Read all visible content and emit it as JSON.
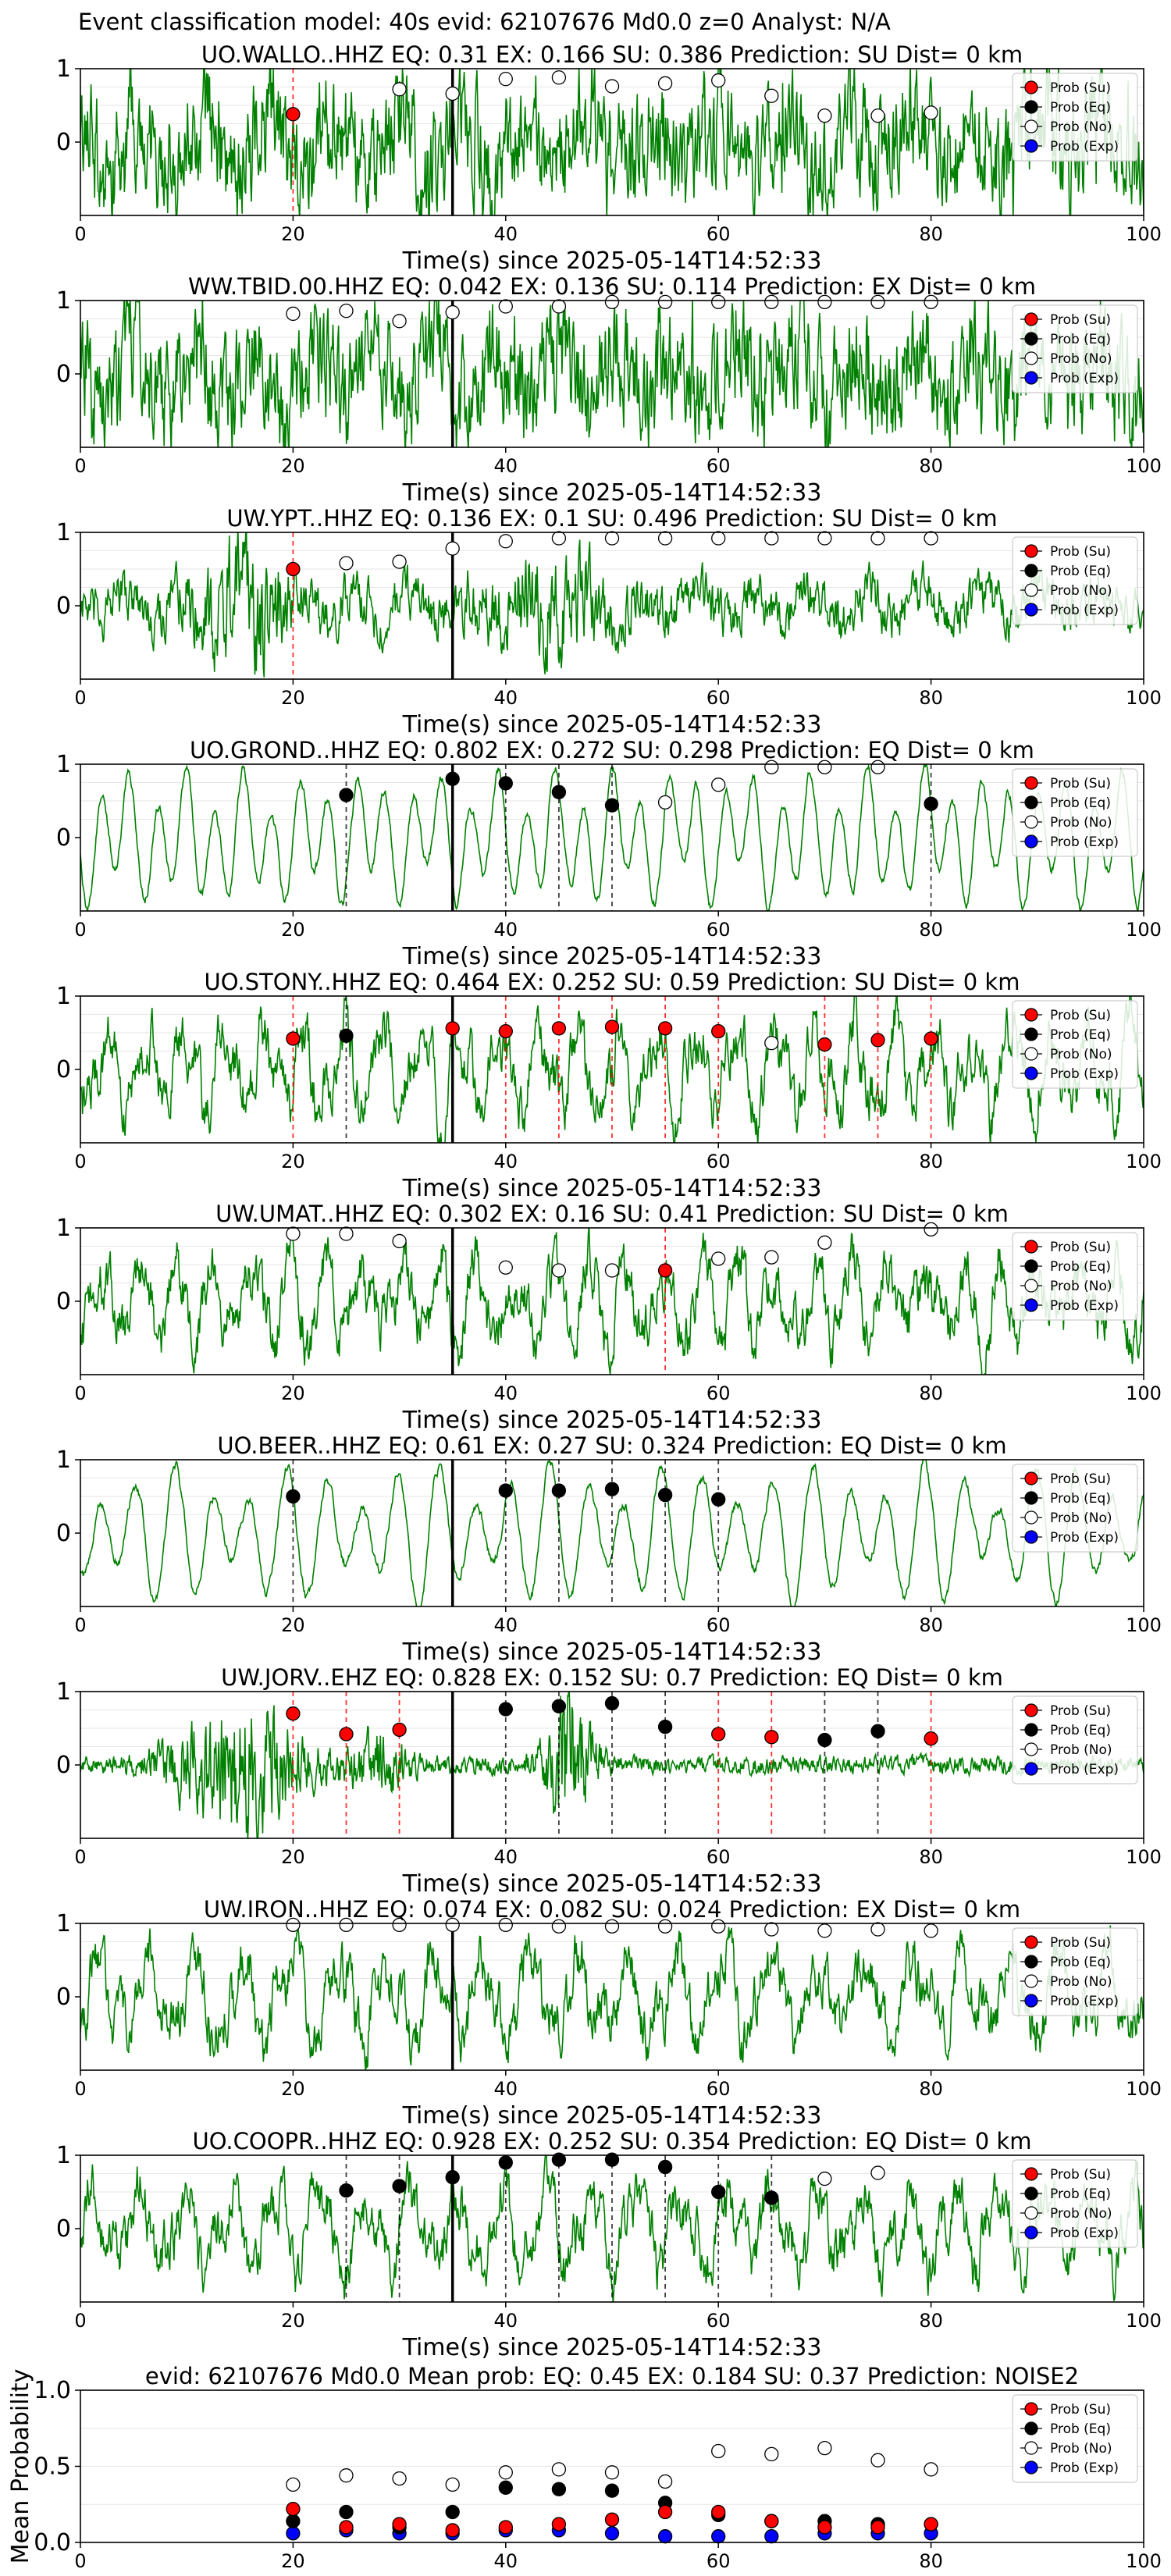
{
  "figure": {
    "suptitle": "Event classification model: 40s evid: 62107676 Md0.0 z=0 Analyst: N/A"
  },
  "legend": {
    "entries": [
      {
        "label": "Prob (Su)",
        "color": "#ff0000"
      },
      {
        "label": "Prob (Eq)",
        "color": "#000000"
      },
      {
        "label": "Prob (No)",
        "color": "#ffffff"
      },
      {
        "label": "Prob (Exp)",
        "color": "#0000ff"
      }
    ],
    "placement": "top-right"
  },
  "colors": {
    "waveform": "#008000",
    "su_line": "#ff0000",
    "eq_line": "#000000",
    "event_line": "#000000"
  },
  "chart_data": [
    {
      "type": "line",
      "title": "UO.WALLO..HHZ   EQ: 0.31   EX: 0.166   SU: 0.386   Prediction: SU    Dist= 0 km",
      "xlabel": "Time(s) since 2025-05-14T14:52:33",
      "ylabel": "",
      "xlim": [
        0,
        100
      ],
      "ylim": [
        -1,
        1
      ],
      "xticks": [
        "0",
        "20",
        "40",
        "60",
        "80"
      ],
      "yticks": [
        "0",
        "1"
      ],
      "event_time": 35,
      "waveform_style": "broadband",
      "su": [
        [
          20,
          0.38
        ]
      ],
      "eq": [],
      "no": [
        [
          30,
          0.72
        ],
        [
          35,
          0.66
        ],
        [
          40,
          0.86
        ],
        [
          45,
          0.88
        ],
        [
          50,
          0.76
        ],
        [
          55,
          0.8
        ],
        [
          60,
          0.84
        ],
        [
          65,
          0.63
        ],
        [
          70,
          0.36
        ],
        [
          75,
          0.36
        ],
        [
          80,
          0.4
        ]
      ],
      "exp": [],
      "su_lines": [
        20
      ],
      "eq_lines": []
    },
    {
      "type": "line",
      "title": "WW.TBID.00.HHZ   EQ: 0.042   EX: 0.136   SU: 0.114   Prediction: EX    Dist= 0 km",
      "xlabel": "Time(s) since 2025-05-14T14:52:33",
      "ylabel": "",
      "xlim": [
        0,
        100
      ],
      "ylim": [
        -1,
        1
      ],
      "xticks": [
        "0",
        "20",
        "40",
        "60",
        "80"
      ],
      "yticks": [
        "0",
        "1"
      ],
      "event_time": 35,
      "waveform_style": "broadband",
      "su": [],
      "eq": [],
      "no": [
        [
          20,
          0.82
        ],
        [
          25,
          0.86
        ],
        [
          30,
          0.72
        ],
        [
          35,
          0.84
        ],
        [
          40,
          0.92
        ],
        [
          45,
          0.92
        ],
        [
          50,
          0.98
        ],
        [
          55,
          0.98
        ],
        [
          60,
          0.98
        ],
        [
          65,
          0.98
        ],
        [
          70,
          0.98
        ],
        [
          75,
          0.98
        ],
        [
          80,
          0.98
        ]
      ],
      "exp": [],
      "su_lines": [],
      "eq_lines": []
    },
    {
      "type": "line",
      "title": "UW.YPT..HHZ   EQ: 0.136   EX: 0.1   SU: 0.496   Prediction: SU    Dist= 0 km",
      "xlabel": "Time(s) since 2025-05-14T14:52:33",
      "ylabel": "",
      "xlim": [
        0,
        100
      ],
      "ylim": [
        -1,
        1
      ],
      "xticks": [
        "0",
        "20",
        "40",
        "60",
        "80"
      ],
      "yticks": [
        "0",
        "1"
      ],
      "event_time": 35,
      "waveform_style": "burst",
      "su": [
        [
          20,
          0.5
        ]
      ],
      "eq": [],
      "no": [
        [
          25,
          0.58
        ],
        [
          30,
          0.6
        ],
        [
          35,
          0.78
        ],
        [
          40,
          0.88
        ],
        [
          45,
          0.92
        ],
        [
          50,
          0.92
        ],
        [
          55,
          0.92
        ],
        [
          60,
          0.92
        ],
        [
          65,
          0.92
        ],
        [
          70,
          0.92
        ],
        [
          75,
          0.92
        ],
        [
          80,
          0.92
        ]
      ],
      "exp": [],
      "su_lines": [
        20
      ],
      "eq_lines": []
    },
    {
      "type": "line",
      "title": "UO.GROND..HHZ   EQ: 0.802   EX: 0.272   SU: 0.298   Prediction: EQ    Dist= 0 km",
      "xlabel": "Time(s) since 2025-05-14T14:52:33",
      "ylabel": "",
      "xlim": [
        0,
        100
      ],
      "ylim": [
        -1,
        1
      ],
      "xticks": [
        "0",
        "20",
        "40",
        "60",
        "80"
      ],
      "yticks": [
        "0",
        "1"
      ],
      "event_time": 35,
      "waveform_style": "oscillating",
      "su": [],
      "eq": [
        [
          25,
          0.58
        ],
        [
          35,
          0.8
        ],
        [
          40,
          0.74
        ],
        [
          45,
          0.62
        ],
        [
          50,
          0.44
        ],
        [
          80,
          0.46
        ]
      ],
      "no": [
        [
          55,
          0.48
        ],
        [
          60,
          0.72
        ],
        [
          65,
          0.96
        ],
        [
          70,
          0.96
        ],
        [
          75,
          0.96
        ]
      ],
      "exp": [],
      "su_lines": [],
      "eq_lines": [
        25,
        40,
        45,
        50,
        80
      ]
    },
    {
      "type": "line",
      "title": "UO.STONY..HHZ   EQ: 0.464   EX: 0.252   SU: 0.59   Prediction: SU    Dist= 0 km",
      "xlabel": "Time(s) since 2025-05-14T14:52:33",
      "ylabel": "",
      "xlim": [
        0,
        100
      ],
      "ylim": [
        -1,
        1
      ],
      "xticks": [
        "0",
        "20",
        "40",
        "60",
        "80"
      ],
      "yticks": [
        "0",
        "1"
      ],
      "event_time": 35,
      "waveform_style": "mixed",
      "su": [
        [
          20,
          0.42
        ],
        [
          35,
          0.56
        ],
        [
          40,
          0.52
        ],
        [
          45,
          0.56
        ],
        [
          50,
          0.58
        ],
        [
          55,
          0.56
        ],
        [
          60,
          0.52
        ],
        [
          70,
          0.34
        ],
        [
          75,
          0.4
        ],
        [
          80,
          0.42
        ]
      ],
      "eq": [
        [
          25,
          0.46
        ]
      ],
      "no": [
        [
          65,
          0.36
        ]
      ],
      "exp": [],
      "su_lines": [
        20,
        35,
        40,
        45,
        50,
        55,
        60,
        70,
        75,
        80
      ],
      "eq_lines": [
        25
      ]
    },
    {
      "type": "line",
      "title": "UW.UMAT..HHZ   EQ: 0.302   EX: 0.16   SU: 0.41   Prediction: SU    Dist= 0 km",
      "xlabel": "Time(s) since 2025-05-14T14:52:33",
      "ylabel": "",
      "xlim": [
        0,
        100
      ],
      "ylim": [
        -1,
        1
      ],
      "xticks": [
        "0",
        "20",
        "40",
        "60",
        "80"
      ],
      "yticks": [
        "0",
        "1"
      ],
      "event_time": 35,
      "waveform_style": "mixed",
      "su": [
        [
          55,
          0.42
        ]
      ],
      "eq": [],
      "no": [
        [
          20,
          0.92
        ],
        [
          25,
          0.92
        ],
        [
          30,
          0.82
        ],
        [
          40,
          0.46
        ],
        [
          45,
          0.42
        ],
        [
          50,
          0.42
        ],
        [
          60,
          0.58
        ],
        [
          65,
          0.6
        ],
        [
          70,
          0.8
        ],
        [
          80,
          0.98
        ]
      ],
      "exp": [],
      "su_lines": [
        55
      ],
      "eq_lines": []
    },
    {
      "type": "line",
      "title": "UO.BEER..HHZ   EQ: 0.61   EX: 0.27   SU: 0.324   Prediction: EQ    Dist= 0 km",
      "xlabel": "Time(s) since 2025-05-14T14:52:33",
      "ylabel": "",
      "xlim": [
        0,
        100
      ],
      "ylim": [
        -1,
        1
      ],
      "xticks": [
        "0",
        "20",
        "40",
        "60",
        "80"
      ],
      "yticks": [
        "0",
        "1"
      ],
      "event_time": 35,
      "waveform_style": "oscillating",
      "su": [],
      "eq": [
        [
          20,
          0.5
        ],
        [
          40,
          0.58
        ],
        [
          45,
          0.58
        ],
        [
          50,
          0.6
        ],
        [
          55,
          0.52
        ],
        [
          60,
          0.46
        ]
      ],
      "no": [],
      "exp": [],
      "su_lines": [],
      "eq_lines": [
        20,
        40,
        45,
        50,
        55,
        60
      ]
    },
    {
      "type": "line",
      "title": "UW.JORV..EHZ   EQ: 0.828   EX: 0.152   SU: 0.7   Prediction: EQ    Dist= 0 km",
      "xlabel": "Time(s) since 2025-05-14T14:52:33",
      "ylabel": "",
      "xlim": [
        0,
        100
      ],
      "ylim": [
        -1,
        1
      ],
      "xticks": [
        "0",
        "20",
        "40",
        "60",
        "80"
      ],
      "yticks": [
        "0",
        "1"
      ],
      "event_time": 35,
      "waveform_style": "event",
      "su": [
        [
          20,
          0.7
        ],
        [
          25,
          0.42
        ],
        [
          30,
          0.48
        ],
        [
          60,
          0.42
        ],
        [
          65,
          0.38
        ],
        [
          80,
          0.36
        ]
      ],
      "eq": [
        [
          40,
          0.76
        ],
        [
          45,
          0.8
        ],
        [
          50,
          0.84
        ],
        [
          55,
          0.52
        ],
        [
          70,
          0.34
        ],
        [
          75,
          0.46
        ]
      ],
      "no": [],
      "exp": [],
      "su_lines": [
        20,
        25,
        30,
        60,
        65,
        80
      ],
      "eq_lines": [
        40,
        45,
        50,
        55,
        70,
        75
      ]
    },
    {
      "type": "line",
      "title": "UW.IRON..HHZ   EQ: 0.074   EX: 0.082   SU: 0.024   Prediction: EX    Dist= 0 km",
      "xlabel": "Time(s) since 2025-05-14T14:52:33",
      "ylabel": "",
      "xlim": [
        0,
        100
      ],
      "ylim": [
        -1,
        1
      ],
      "xticks": [
        "0",
        "20",
        "40",
        "60",
        "80"
      ],
      "yticks": [
        "0",
        "1"
      ],
      "event_time": 35,
      "waveform_style": "mixed",
      "su": [],
      "eq": [],
      "no": [
        [
          20,
          0.98
        ],
        [
          25,
          0.98
        ],
        [
          30,
          0.98
        ],
        [
          35,
          0.98
        ],
        [
          40,
          0.98
        ],
        [
          45,
          0.96
        ],
        [
          50,
          0.96
        ],
        [
          55,
          0.96
        ],
        [
          60,
          0.96
        ],
        [
          65,
          0.92
        ],
        [
          70,
          0.9
        ],
        [
          75,
          0.92
        ],
        [
          80,
          0.9
        ]
      ],
      "exp": [],
      "su_lines": [],
      "eq_lines": []
    },
    {
      "type": "line",
      "title": "UO.COOPR..HHZ   EQ: 0.928   EX: 0.252   SU: 0.354   Prediction: EQ    Dist= 0 km",
      "xlabel": "Time(s) since 2025-05-14T14:52:33",
      "ylabel": "",
      "xlim": [
        0,
        100
      ],
      "ylim": [
        -1,
        1
      ],
      "xticks": [
        "0",
        "20",
        "40",
        "60",
        "80"
      ],
      "yticks": [
        "0",
        "1"
      ],
      "event_time": 35,
      "waveform_style": "mixed",
      "su": [],
      "eq": [
        [
          25,
          0.52
        ],
        [
          30,
          0.58
        ],
        [
          35,
          0.7
        ],
        [
          40,
          0.9
        ],
        [
          45,
          0.94
        ],
        [
          50,
          0.94
        ],
        [
          55,
          0.84
        ],
        [
          60,
          0.5
        ],
        [
          65,
          0.42
        ]
      ],
      "no": [
        [
          70,
          0.68
        ],
        [
          75,
          0.76
        ]
      ],
      "exp": [],
      "su_lines": [],
      "eq_lines": [
        25,
        30,
        40,
        45,
        50,
        55,
        60,
        65
      ]
    },
    {
      "type": "scatter",
      "title": "evid: 62107676   Md0.0    Mean prob:   EQ: 0.45   EX: 0.184   SU: 0.37    Prediction: NOISE2",
      "xlabel": "",
      "ylabel": "Mean Probability",
      "xlim": [
        0,
        100
      ],
      "ylim": [
        0,
        1
      ],
      "xticks": [
        "0",
        "20",
        "40",
        "60",
        "80",
        "100"
      ],
      "yticks": [
        "0.0",
        "0.5",
        "1.0"
      ],
      "event_time": null,
      "waveform_style": "none",
      "su": [
        [
          20,
          0.22
        ],
        [
          25,
          0.1
        ],
        [
          30,
          0.12
        ],
        [
          35,
          0.08
        ],
        [
          40,
          0.1
        ],
        [
          45,
          0.12
        ],
        [
          50,
          0.15
        ],
        [
          55,
          0.2
        ],
        [
          60,
          0.2
        ],
        [
          65,
          0.14
        ],
        [
          70,
          0.1
        ],
        [
          75,
          0.1
        ],
        [
          80,
          0.12
        ]
      ],
      "eq": [
        [
          20,
          0.14
        ],
        [
          25,
          0.2
        ],
        [
          30,
          0.1
        ],
        [
          35,
          0.2
        ],
        [
          40,
          0.36
        ],
        [
          45,
          0.35
        ],
        [
          50,
          0.34
        ],
        [
          55,
          0.26
        ],
        [
          60,
          0.18
        ],
        [
          65,
          0.14
        ],
        [
          70,
          0.14
        ],
        [
          75,
          0.12
        ],
        [
          80,
          0.12
        ]
      ],
      "no": [
        [
          20,
          0.38
        ],
        [
          25,
          0.44
        ],
        [
          30,
          0.42
        ],
        [
          35,
          0.38
        ],
        [
          40,
          0.46
        ],
        [
          45,
          0.48
        ],
        [
          50,
          0.46
        ],
        [
          55,
          0.4
        ],
        [
          60,
          0.6
        ],
        [
          65,
          0.58
        ],
        [
          70,
          0.62
        ],
        [
          75,
          0.54
        ],
        [
          80,
          0.48
        ]
      ],
      "exp": [
        [
          20,
          0.06
        ],
        [
          25,
          0.08
        ],
        [
          30,
          0.06
        ],
        [
          35,
          0.06
        ],
        [
          40,
          0.08
        ],
        [
          45,
          0.08
        ],
        [
          50,
          0.06
        ],
        [
          55,
          0.04
        ],
        [
          60,
          0.04
        ],
        [
          65,
          0.04
        ],
        [
          70,
          0.06
        ],
        [
          75,
          0.06
        ],
        [
          80,
          0.06
        ]
      ],
      "su_lines": [],
      "eq_lines": []
    }
  ]
}
